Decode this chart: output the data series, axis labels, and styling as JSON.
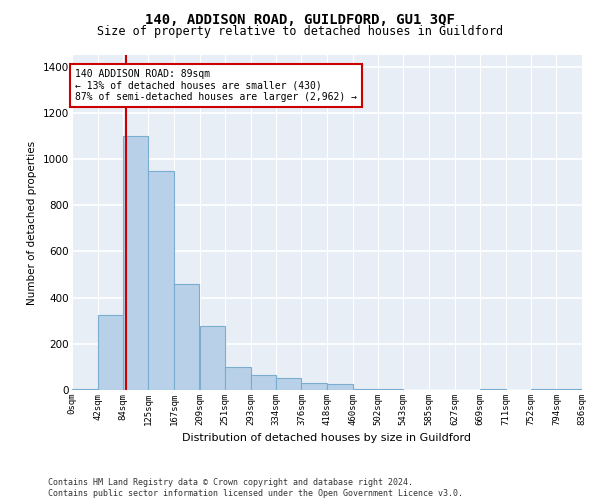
{
  "title": "140, ADDISON ROAD, GUILDFORD, GU1 3QF",
  "subtitle": "Size of property relative to detached houses in Guildford",
  "xlabel": "Distribution of detached houses by size in Guildford",
  "ylabel": "Number of detached properties",
  "bar_color": "#b8d0e8",
  "bar_edge_color": "#7aadd0",
  "background_color": "#e8eef6",
  "grid_color": "#ffffff",
  "annotation_box_color": "#cc0000",
  "annotation_text": "140 ADDISON ROAD: 89sqm\n← 13% of detached houses are smaller (430)\n87% of semi-detached houses are larger (2,962) →",
  "red_line_x": 89,
  "bin_edges": [
    0,
    42,
    84,
    125,
    167,
    209,
    251,
    293,
    334,
    376,
    418,
    460,
    502,
    543,
    585,
    627,
    669,
    711,
    752,
    794,
    836
  ],
  "bin_counts": [
    5,
    325,
    1100,
    950,
    460,
    275,
    100,
    65,
    50,
    30,
    25,
    5,
    5,
    0,
    0,
    0,
    5,
    0,
    5,
    5
  ],
  "ylim": [
    0,
    1450
  ],
  "yticks": [
    0,
    200,
    400,
    600,
    800,
    1000,
    1200,
    1400
  ],
  "footnote": "Contains HM Land Registry data © Crown copyright and database right 2024.\nContains public sector information licensed under the Open Government Licence v3.0."
}
